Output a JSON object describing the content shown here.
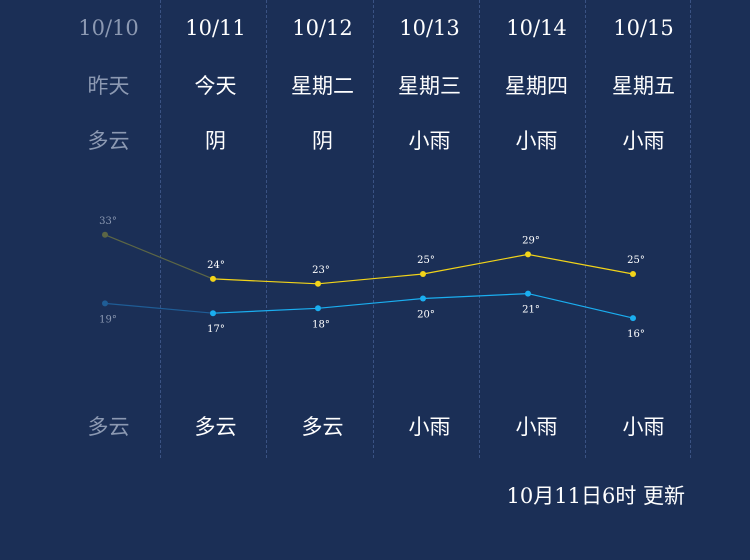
{
  "days": [
    {
      "date": "10/10",
      "weekday": "昨天",
      "day_weather": "多云",
      "night_weather": "多云",
      "high": 33,
      "low": 19,
      "high_label": "33°",
      "low_label": "19°",
      "past": true
    },
    {
      "date": "10/11",
      "weekday": "今天",
      "day_weather": "阴",
      "night_weather": "多云",
      "high": 24,
      "low": 17,
      "high_label": "24°",
      "low_label": "17°",
      "past": false
    },
    {
      "date": "10/12",
      "weekday": "星期二",
      "day_weather": "阴",
      "night_weather": "多云",
      "high": 23,
      "low": 18,
      "high_label": "23°",
      "low_label": "18°",
      "past": false
    },
    {
      "date": "10/13",
      "weekday": "星期三",
      "day_weather": "小雨",
      "night_weather": "小雨",
      "high": 25,
      "low": 20,
      "high_label": "25°",
      "low_label": "20°",
      "past": false
    },
    {
      "date": "10/14",
      "weekday": "星期四",
      "day_weather": "小雨",
      "night_weather": "小雨",
      "high": 29,
      "low": 21,
      "high_label": "29°",
      "low_label": "21°",
      "past": false
    },
    {
      "date": "10/15",
      "weekday": "星期五",
      "day_weather": "小雨",
      "night_weather": "小雨",
      "high": 25,
      "low": 16,
      "high_label": "25°",
      "low_label": "16°",
      "past": false
    }
  ],
  "update_text": "10月11日6时 更新",
  "colors": {
    "background": "#1b2f56",
    "high_line": "#f2d419",
    "low_line": "#1aaef0",
    "past_high_line": "#5c6645",
    "past_low_line": "#1f5d96",
    "past_text": "#8c99b2",
    "divider": "#3a5283"
  },
  "chart_data": {
    "type": "line",
    "categories": [
      "10/10",
      "10/11",
      "10/12",
      "10/13",
      "10/14",
      "10/15"
    ],
    "series": [
      {
        "values": [
          33,
          24,
          23,
          25,
          29,
          25
        ]
      },
      {
        "values": [
          19,
          17,
          18,
          20,
          21,
          16
        ]
      }
    ]
  }
}
